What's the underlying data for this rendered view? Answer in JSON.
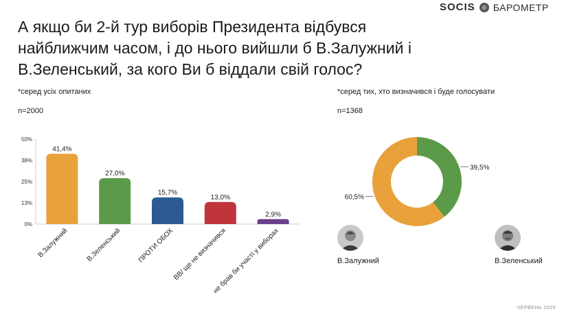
{
  "brand": {
    "logo": "SOCIS",
    "product": "БАРОМЕТР"
  },
  "title": "А якщо би 2-й тур виборів Президента відбувся найближчим часом, і до нього вийшли б В.Залужний і В.Зеленський, за кого Ви б віддали свій голос?",
  "left_note": "*серед усіх опитаних",
  "left_n": "n=2000",
  "right_note": "*серед тих, хто визначився і буде голосувати",
  "right_n": "n=1368",
  "candidates": [
    {
      "name": "В.Залужний"
    },
    {
      "name": "В.Зеленський"
    }
  ],
  "footer": "ЧЕРВЕНЬ 2025",
  "chart_data": [
    {
      "type": "bar",
      "categories": [
        "В.Залужний",
        "В.Зеленський",
        "ПРОТИ ОБОХ",
        "ВВ/ ще не визначився",
        "не брав би участі у виборах"
      ],
      "values": [
        41.4,
        27.0,
        15.7,
        13.0,
        2.9
      ],
      "data_labels": [
        "41,4%",
        "27,0%",
        "15,7%",
        "13,0%",
        "2,9%"
      ],
      "colors": [
        "#E9A23B",
        "#5B9A48",
        "#2B5A94",
        "#C0353A",
        "#6A3F8C"
      ],
      "yticks": [
        "0%",
        "13%",
        "25%",
        "38%",
        "50%"
      ],
      "ylim": [
        0,
        50
      ],
      "grid": false
    },
    {
      "type": "pie",
      "labels": [
        "В.Залужний",
        "В.Зеленський"
      ],
      "values": [
        60.5,
        39.5
      ],
      "data_labels": [
        "60,5%",
        "39,5%"
      ],
      "colors": [
        "#E9A23B",
        "#5B9A48"
      ]
    }
  ]
}
